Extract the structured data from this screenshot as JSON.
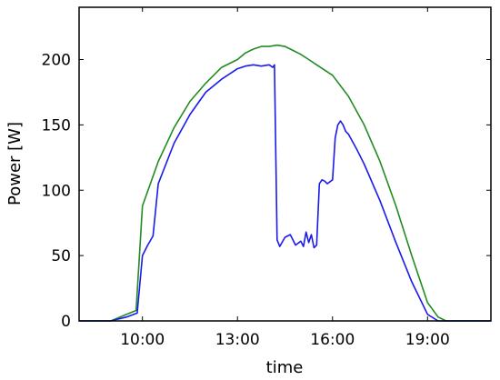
{
  "chart_data": {
    "type": "line",
    "title": "",
    "xlabel": "time",
    "ylabel": "Power [W]",
    "xlim": [
      "08:00",
      "21:00"
    ],
    "ylim": [
      0,
      240
    ],
    "x_ticks": [
      "10:00",
      "13:00",
      "16:00",
      "19:00"
    ],
    "y_ticks": [
      0,
      50,
      100,
      150,
      200
    ],
    "grid": false,
    "legend": "none",
    "series": [
      {
        "color": "#228b22",
        "x": [
          "08:00",
          "09:00",
          "09:30",
          "09:48",
          "10:00",
          "10:15",
          "10:30",
          "11:00",
          "11:30",
          "12:00",
          "12:30",
          "13:00",
          "13:15",
          "13:30",
          "13:45",
          "14:00",
          "14:15",
          "14:30",
          "14:45",
          "15:00",
          "15:15",
          "15:30",
          "16:00",
          "16:30",
          "17:00",
          "17:30",
          "18:00",
          "18:30",
          "19:00",
          "19:20",
          "19:35",
          "19:45",
          "20:00",
          "21:00"
        ],
        "values": [
          0,
          0,
          5,
          8,
          88,
          105,
          122,
          148,
          168,
          182,
          194,
          200,
          205,
          208,
          210,
          210,
          211,
          210,
          207,
          204,
          200,
          196,
          188,
          172,
          150,
          122,
          88,
          50,
          14,
          3,
          0,
          0,
          0,
          0
        ]
      },
      {
        "color": "#1a1aee",
        "x": [
          "08:00",
          "09:00",
          "09:30",
          "09:50",
          "10:00",
          "10:10",
          "10:20",
          "10:30",
          "11:00",
          "11:30",
          "12:00",
          "12:30",
          "13:00",
          "13:15",
          "13:30",
          "13:45",
          "14:00",
          "14:07",
          "14:10",
          "14:15",
          "14:20",
          "14:30",
          "14:40",
          "14:50",
          "15:00",
          "15:05",
          "15:10",
          "15:15",
          "15:20",
          "15:25",
          "15:30",
          "15:35",
          "15:40",
          "15:45",
          "15:50",
          "16:00",
          "16:05",
          "16:10",
          "16:15",
          "16:20",
          "16:25",
          "16:30",
          "16:45",
          "17:00",
          "17:30",
          "18:00",
          "18:30",
          "19:00",
          "19:20",
          "19:30",
          "19:40",
          "20:00",
          "21:00"
        ],
        "values": [
          0,
          0,
          3,
          6,
          50,
          58,
          65,
          105,
          136,
          158,
          175,
          185,
          193,
          195,
          196,
          195,
          196,
          194,
          196,
          62,
          57,
          64,
          66,
          58,
          61,
          57,
          68,
          60,
          66,
          56,
          58,
          105,
          108,
          107,
          105,
          108,
          140,
          150,
          153,
          150,
          145,
          143,
          132,
          120,
          92,
          60,
          30,
          5,
          0,
          0,
          0,
          0,
          0
        ]
      }
    ]
  }
}
